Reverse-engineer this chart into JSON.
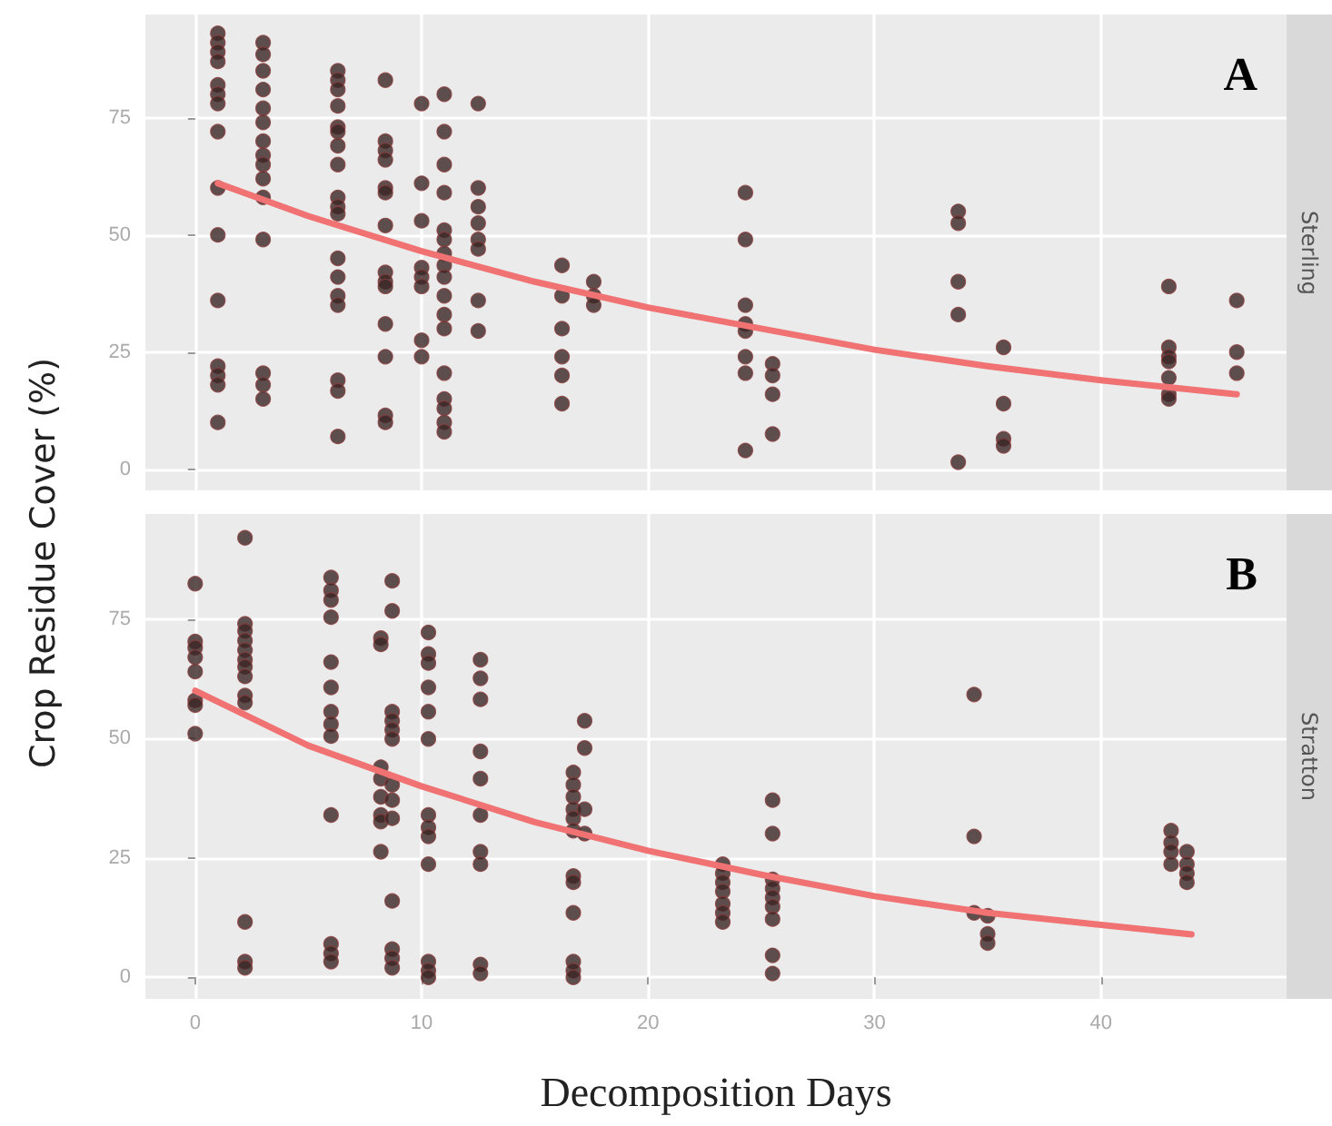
{
  "chart_data": [
    {
      "type": "scatter",
      "title": "Sterling",
      "ylabel": "Crop Residue Cover (%)",
      "annotations": [
        "A"
      ],
      "xlim": [
        -2.2,
        48.2
      ],
      "xticks": [
        0,
        10,
        20,
        30,
        40
      ],
      "ylim": [
        -4.5,
        97
      ],
      "yticks": [
        0,
        25,
        50,
        75
      ],
      "grid": true,
      "tick_labels": "y",
      "marker": "circle",
      "series": [
        {
          "color": "#3b2626",
          "x": [
            1,
            1,
            1,
            1,
            1,
            1,
            1,
            1,
            1,
            1,
            1,
            1,
            1,
            1,
            1,
            3,
            3,
            3,
            3,
            3,
            3,
            3,
            3,
            3,
            3,
            3,
            3,
            3,
            3,
            3,
            6.3,
            6.3,
            6.3,
            6.3,
            6.3,
            6.3,
            6.3,
            6.3,
            6.3,
            6.3,
            6.3,
            6.3,
            6.3,
            6.3,
            6.3,
            6.3,
            6.3,
            6.3,
            8.4,
            8.4,
            8.4,
            8.4,
            8.4,
            8.4,
            8.4,
            8.4,
            8.4,
            8.4,
            8.4,
            8.4,
            8.4,
            8.4,
            10,
            10,
            10,
            10,
            10,
            10,
            10,
            10,
            11,
            11,
            11,
            11,
            11,
            11,
            11,
            11,
            11,
            11,
            11,
            11,
            11,
            11,
            11,
            11,
            11,
            12.5,
            12.5,
            12.5,
            12.5,
            12.5,
            12.5,
            12.5,
            12.5,
            16.2,
            16.2,
            16.2,
            16.2,
            16.2,
            16.2,
            17.6,
            17.6,
            17.6,
            24.3,
            24.3,
            24.3,
            24.3,
            24.3,
            24.3,
            24.3,
            24.3,
            25.5,
            25.5,
            25.5,
            25.5,
            33.7,
            33.7,
            33.7,
            33.7,
            33.7,
            35.7,
            35.7,
            35.7,
            35.7,
            43,
            43,
            43,
            43,
            43,
            43,
            43,
            46,
            46,
            46
          ],
          "values": [
            93,
            91,
            89,
            87,
            82,
            80,
            78,
            72,
            60,
            50,
            36,
            22,
            20,
            18,
            10,
            91,
            88.5,
            85,
            81,
            77,
            74,
            70,
            67,
            65,
            62,
            58,
            49,
            20.5,
            18,
            15,
            85,
            83,
            81,
            77.5,
            73,
            72,
            69,
            65,
            58,
            56,
            54.5,
            45,
            41,
            37,
            35,
            19,
            16.7,
            7,
            83,
            70,
            68,
            66,
            60,
            59,
            52,
            42,
            40,
            39,
            31,
            24,
            11.5,
            10,
            78,
            61,
            53,
            43,
            41,
            39,
            27.5,
            24,
            80,
            72,
            65,
            59,
            51,
            49,
            46,
            43.5,
            41,
            37,
            33,
            30,
            20.5,
            15,
            13,
            10,
            8,
            78,
            60,
            56,
            52.5,
            49,
            47,
            36,
            29.5,
            43.5,
            37,
            30,
            24,
            20,
            14,
            40,
            37,
            35,
            59,
            49,
            35,
            31,
            29.5,
            24,
            20.5,
            4,
            22.5,
            20,
            16,
            7.5,
            55,
            52.5,
            40,
            33,
            1.5,
            26,
            14,
            6.5,
            5,
            39,
            26,
            24,
            23,
            19.5,
            16,
            15,
            36,
            25,
            20.5
          ]
        },
        {
          "type": "line",
          "color": "#f07272",
          "line_style": "solid",
          "marker": "none",
          "x": [
            1,
            5,
            10,
            15,
            20,
            25,
            30,
            35,
            40,
            46
          ],
          "values": [
            61,
            54,
            46.5,
            40,
            34.5,
            30,
            25.5,
            22,
            19,
            16
          ]
        }
      ]
    },
    {
      "type": "scatter",
      "title": "Stratton",
      "xlabel": "Decomposition Days",
      "annotations": [
        "B"
      ],
      "xlim": [
        -2.2,
        48.2
      ],
      "xticks": [
        0,
        10,
        20,
        30,
        40
      ],
      "ylim": [
        -4.5,
        97
      ],
      "yticks": [
        0,
        25,
        50,
        75
      ],
      "grid": true,
      "marker": "circle",
      "series": [
        {
          "color": "#3b2626",
          "x": [
            0,
            0,
            0,
            0,
            0,
            0,
            0,
            0,
            2.2,
            2.2,
            2.2,
            2.2,
            2.2,
            2.2,
            2.2,
            2.2,
            2.2,
            2.2,
            2.2,
            2.2,
            2.2,
            6,
            6,
            6,
            6,
            6,
            6,
            6,
            6,
            6,
            6,
            6,
            6,
            6,
            8.2,
            8.2,
            8.2,
            8.2,
            8.2,
            8.2,
            8.2,
            8.2,
            8.7,
            8.7,
            8.7,
            8.7,
            8.7,
            8.7,
            8.7,
            8.7,
            8.7,
            8.7,
            8.7,
            8.7,
            8.7,
            10.3,
            10.3,
            10.3,
            10.3,
            10.3,
            10.3,
            10.3,
            10.3,
            10.3,
            10.3,
            10.3,
            10.3,
            10.3,
            12.6,
            12.6,
            12.6,
            12.6,
            12.6,
            12.6,
            12.6,
            12.6,
            12.6,
            12.6,
            16.7,
            16.7,
            16.7,
            16.7,
            16.7,
            16.7,
            16.7,
            16.7,
            16.7,
            16.7,
            16.7,
            16.7,
            17.2,
            17.2,
            17.2,
            17.2,
            23.3,
            23.3,
            23.3,
            23.3,
            23.3,
            23.3,
            23.3,
            25.5,
            25.5,
            25.5,
            25.5,
            25.5,
            25.5,
            25.5,
            25.5,
            25.5,
            34.4,
            34.4,
            34.4,
            35,
            35,
            35,
            43.1,
            43.1,
            43.1,
            43.1,
            43.8,
            43.8,
            43.8,
            43.8
          ],
          "values": [
            82.4,
            70.3,
            69,
            67,
            64,
            58,
            57,
            51,
            92,
            74,
            72.5,
            70.5,
            68.5,
            66.5,
            65,
            63,
            59,
            57.5,
            11.6,
            3.3,
            2,
            83.7,
            81,
            79,
            75.4,
            66,
            60.7,
            55.6,
            53,
            50.5,
            34,
            7,
            5,
            3.3,
            71,
            69.7,
            44,
            41.6,
            37.8,
            34,
            32.6,
            26.3,
            83,
            76.7,
            55.6,
            53.7,
            51.8,
            49.9,
            40.3,
            37.1,
            33.3,
            16,
            5.9,
            4,
            2,
            72.2,
            67.7,
            65.8,
            60.7,
            55.6,
            49.9,
            34,
            31.4,
            29.5,
            23.7,
            3.3,
            1.4,
            0,
            66.5,
            62.6,
            58.2,
            47.3,
            41.6,
            34,
            26.3,
            23.7,
            2.7,
            0.8,
            42.9,
            40.3,
            37.8,
            35.2,
            33.3,
            30.7,
            21.2,
            19.9,
            13.5,
            3.3,
            1.4,
            0,
            53.7,
            48,
            35.2,
            30.1,
            23.7,
            21.8,
            19.9,
            18,
            15.4,
            13.5,
            11.6,
            37.1,
            30.1,
            20.5,
            18.6,
            16.7,
            14.8,
            12.2,
            4.6,
            0.8,
            59.2,
            29.5,
            13.5,
            12.9,
            9.1,
            7.2,
            30.7,
            28.2,
            26.3,
            23.7,
            26.3,
            23.7,
            21.8,
            19.9
          ]
        },
        {
          "type": "line",
          "color": "#f07272",
          "line_style": "solid",
          "marker": "none",
          "x": [
            0,
            5,
            10,
            15,
            20,
            25,
            30,
            35,
            40,
            44
          ],
          "values": [
            60,
            48.5,
            40,
            32.5,
            26.5,
            21.5,
            17,
            13.5,
            11,
            9
          ]
        }
      ]
    }
  ]
}
